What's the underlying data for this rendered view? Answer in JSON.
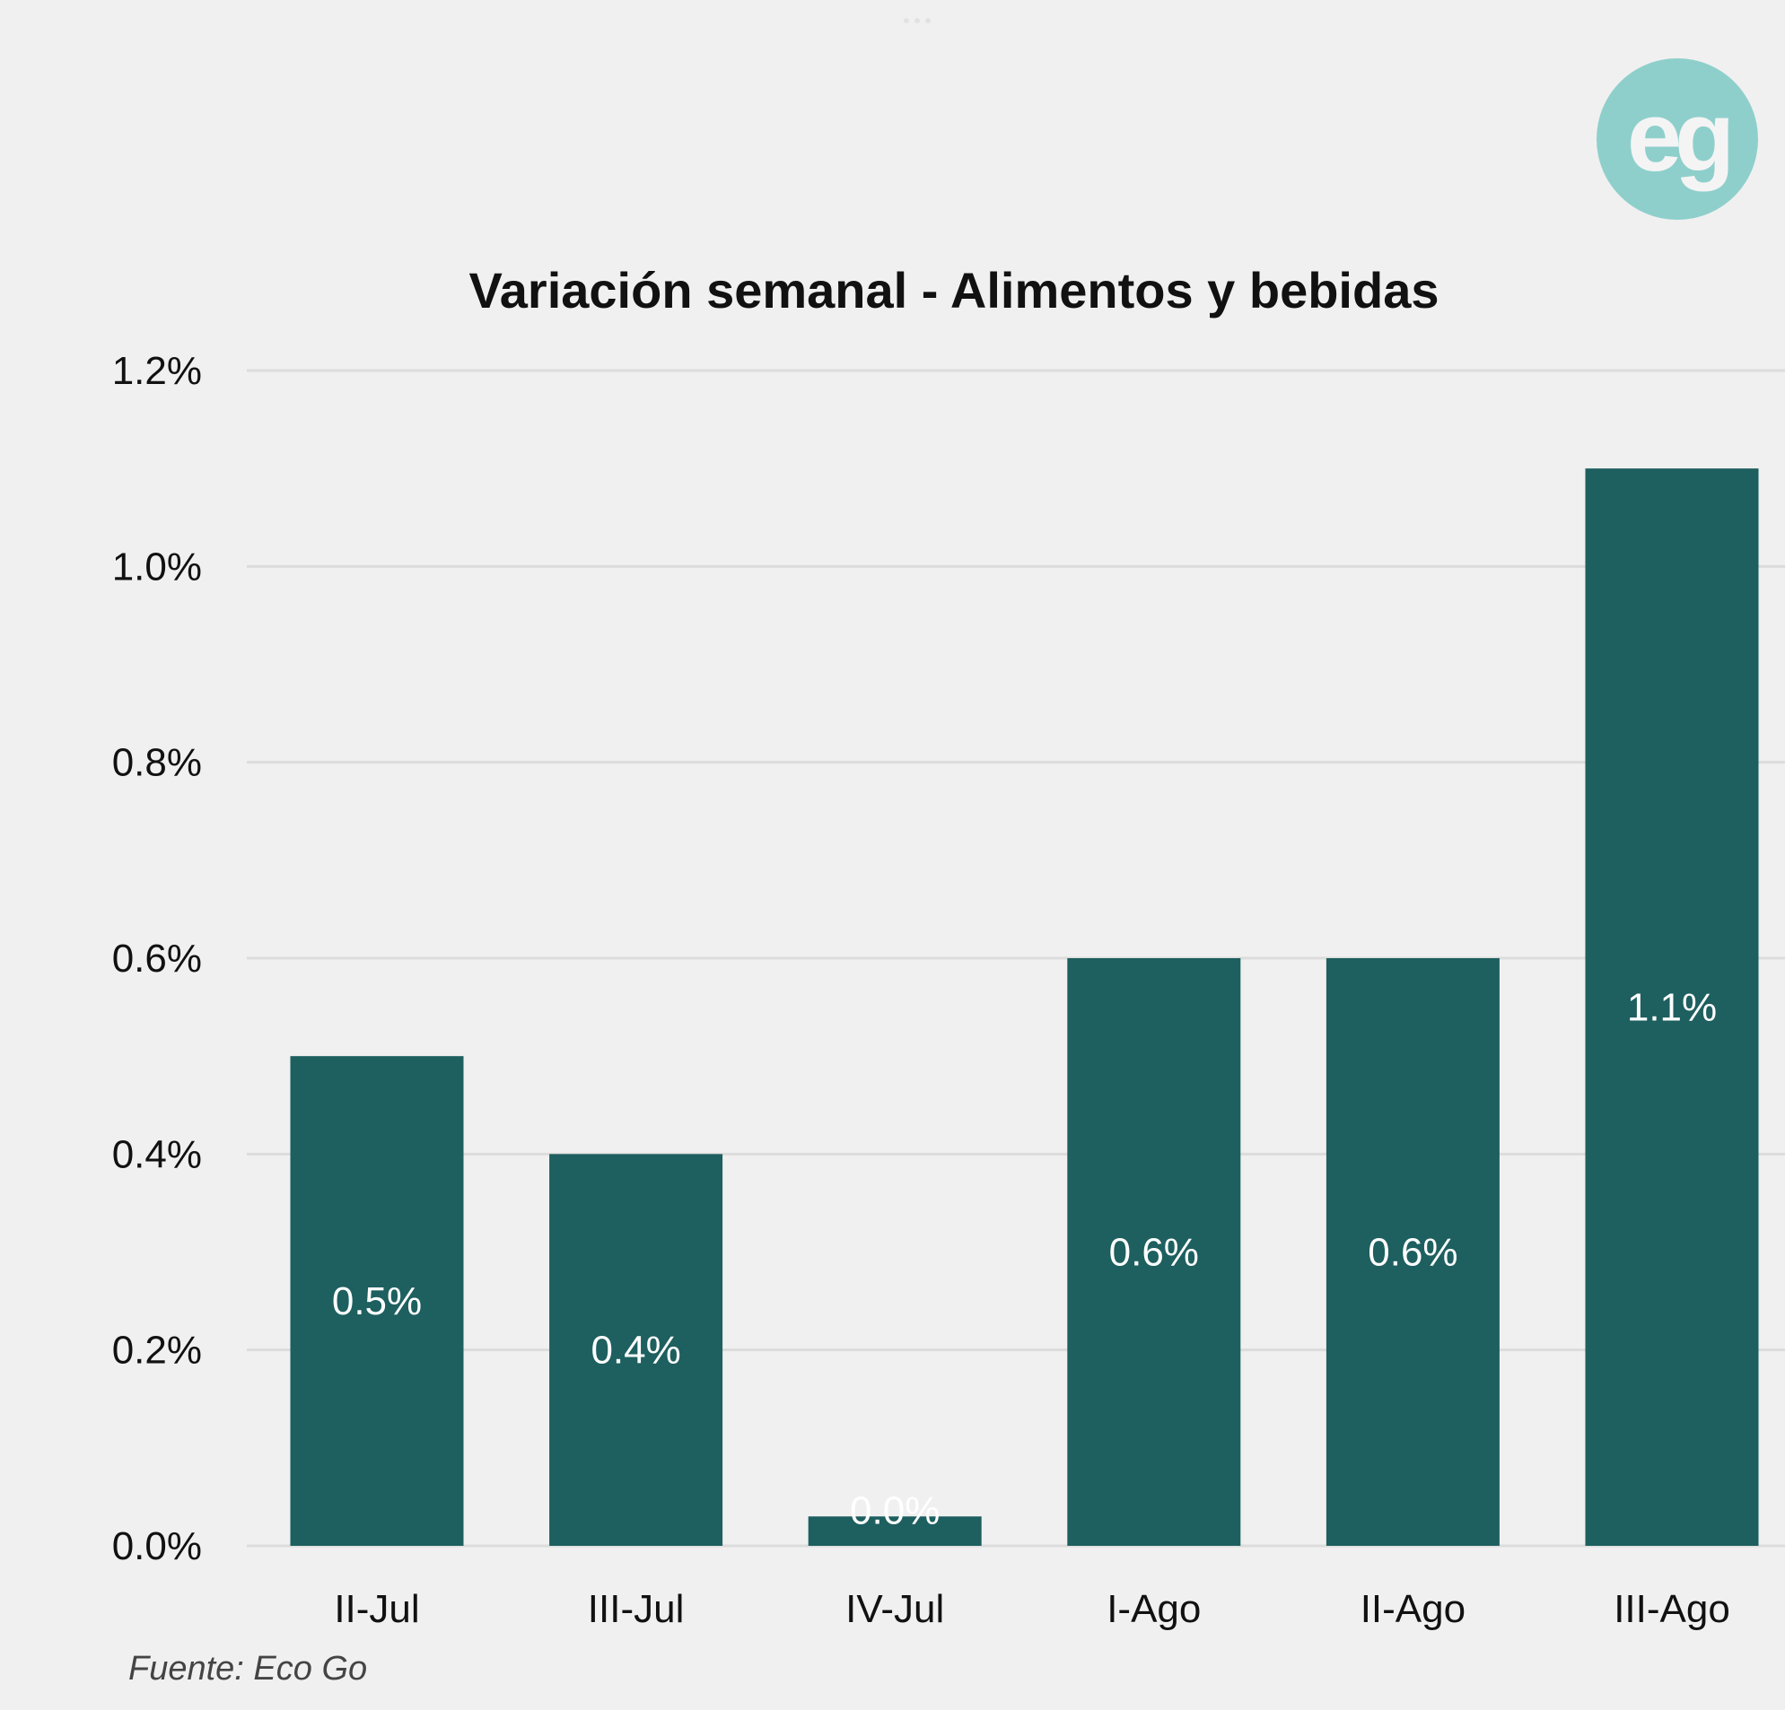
{
  "logo": {
    "text": "eg",
    "color": "#8ecfcb"
  },
  "source": "Fuente: Eco Go",
  "chart_data": {
    "type": "bar",
    "title": "Variación semanal - Alimentos y bebidas",
    "xlabel": "",
    "ylabel": "",
    "categories": [
      "II-Jul",
      "III-Jul",
      "IV-Jul",
      "I-Ago",
      "II-Ago",
      "III-Ago"
    ],
    "values": [
      0.5,
      0.4,
      0.03,
      0.6,
      0.6,
      1.1
    ],
    "data_labels": [
      "0.5%",
      "0.4%",
      "0.0%",
      "0.6%",
      "0.6%",
      "1.1%"
    ],
    "ylim": [
      0,
      1.2
    ],
    "yticks": [
      0,
      0.2,
      0.4,
      0.6,
      0.8,
      1.0,
      1.2
    ],
    "ytick_labels": [
      "0.0%",
      "0.2%",
      "0.4%",
      "0.6%",
      "0.8%",
      "1.0%",
      "1.2%"
    ],
    "grid": true,
    "legend": "none",
    "bar_color": "#1e5f5f"
  }
}
